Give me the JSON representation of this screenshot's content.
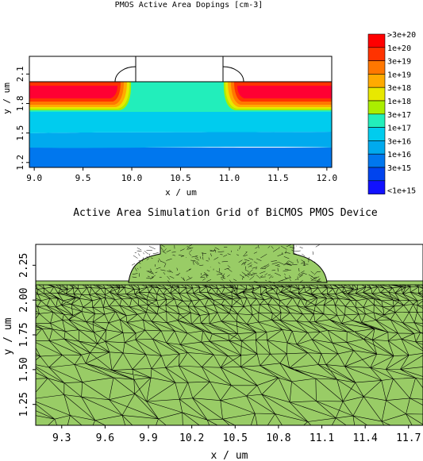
{
  "top_plot": {
    "title": "PMOS Active Area Dopings [cm-3]",
    "xlabel": "x / um",
    "ylabel": "y / um",
    "x_ticks": [
      "9.0",
      "9.5",
      "10.0",
      "10.5",
      "11.0",
      "11.5",
      "12.0"
    ],
    "x_tick_values": [
      9.0,
      9.5,
      10.0,
      10.5,
      11.0,
      11.5,
      12.0
    ],
    "y_ticks": [
      "1.2",
      "1.5",
      "1.8",
      "2.1"
    ],
    "y_tick_values": [
      1.2,
      1.5,
      1.8,
      2.1
    ],
    "xlim": [
      8.95,
      12.05
    ],
    "ylim": [
      1.15,
      2.28
    ],
    "legend": {
      "labels": [
        ">3e+20",
        "1e+20",
        "3e+19",
        "1e+19",
        "3e+18",
        "1e+18",
        "3e+17",
        "1e+17",
        "3e+16",
        "1e+16",
        "3e+15",
        "<1e+15"
      ],
      "colors": [
        "#ff0000",
        "#ff3300",
        "#ff7700",
        "#ffaa00",
        "#e8e800",
        "#aaee00",
        "#22eebb",
        "#00ccee",
        "#00aaee",
        "#0077ee",
        "#0044ee",
        "#1111ff"
      ]
    }
  },
  "bottom_plot": {
    "title": "Active Area Simulation Grid of BiCMOS PMOS Device",
    "xlabel": "x / um",
    "ylabel": "y / um",
    "x_ticks": [
      "9.3",
      "9.6",
      "9.9",
      "10.2",
      "10.5",
      "10.8",
      "11.1",
      "11.4",
      "11.7"
    ],
    "x_tick_values": [
      9.3,
      9.6,
      9.9,
      10.2,
      10.5,
      10.8,
      11.1,
      11.4,
      11.7
    ],
    "y_ticks": [
      "1.25",
      "1.50",
      "1.75",
      "2.00",
      "2.25"
    ],
    "y_tick_values": [
      1.25,
      1.5,
      1.75,
      2.0,
      2.25
    ],
    "xlim": [
      9.12,
      11.8
    ],
    "ylim": [
      1.1,
      2.4
    ],
    "mesh_fill": "#99cc66"
  }
}
